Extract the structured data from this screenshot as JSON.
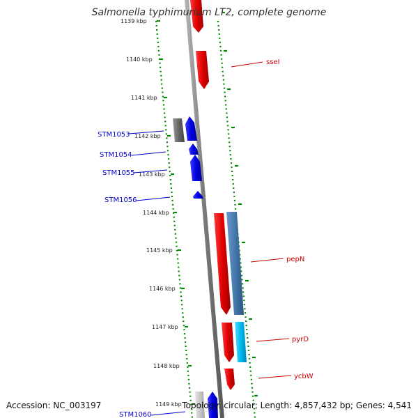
{
  "title": "Salmonella typhimurium LT2, complete genome",
  "footer": {
    "accession": "Accession: NC_003197",
    "summary": "Topology: circular; Length: 4,857,432 bp; Genes: 4,541"
  },
  "ticks": [
    "1139 kbp",
    "1140 kbp",
    "1141 kbp",
    "1142 kbp",
    "1143 kbp",
    "1144 kbp",
    "1145 kbp",
    "1146 kbp",
    "1147 kbp",
    "1148 kbp",
    "1149 kbp"
  ],
  "genes": [
    {
      "label": "sseI",
      "strand": "right",
      "color": "#ff0000"
    },
    {
      "label": "",
      "strand": "right",
      "color": "#ff0000"
    },
    {
      "label": "STM1053",
      "strand": "left",
      "color": "#666666"
    },
    {
      "label": "",
      "strand": "left",
      "color": "#0000ff"
    },
    {
      "label": "STM1054",
      "strand": "left",
      "color": "#0000ff"
    },
    {
      "label": "STM1055",
      "strand": "left",
      "color": "#0000ff"
    },
    {
      "label": "STM1056",
      "strand": "left",
      "color": "#0000ff"
    },
    {
      "label": "pepN",
      "strand": "right",
      "color": "#ff0000"
    },
    {
      "label": "",
      "strand": "right",
      "color": "#4477aa"
    },
    {
      "label": "pyrD",
      "strand": "right",
      "color": "#ff0000"
    },
    {
      "label": "",
      "strand": "right",
      "color": "#00bbee"
    },
    {
      "label": "ycbW",
      "strand": "right",
      "color": "#ff0000"
    },
    {
      "label": "STM1060",
      "strand": "left",
      "color": "#0000ff"
    },
    {
      "label": "",
      "strand": "left",
      "color": "#bbbbbb"
    }
  ],
  "colors": {
    "backbone": "#808080",
    "dots": "#008800",
    "forward": "#ff0000",
    "reverse": "#0000ff"
  }
}
